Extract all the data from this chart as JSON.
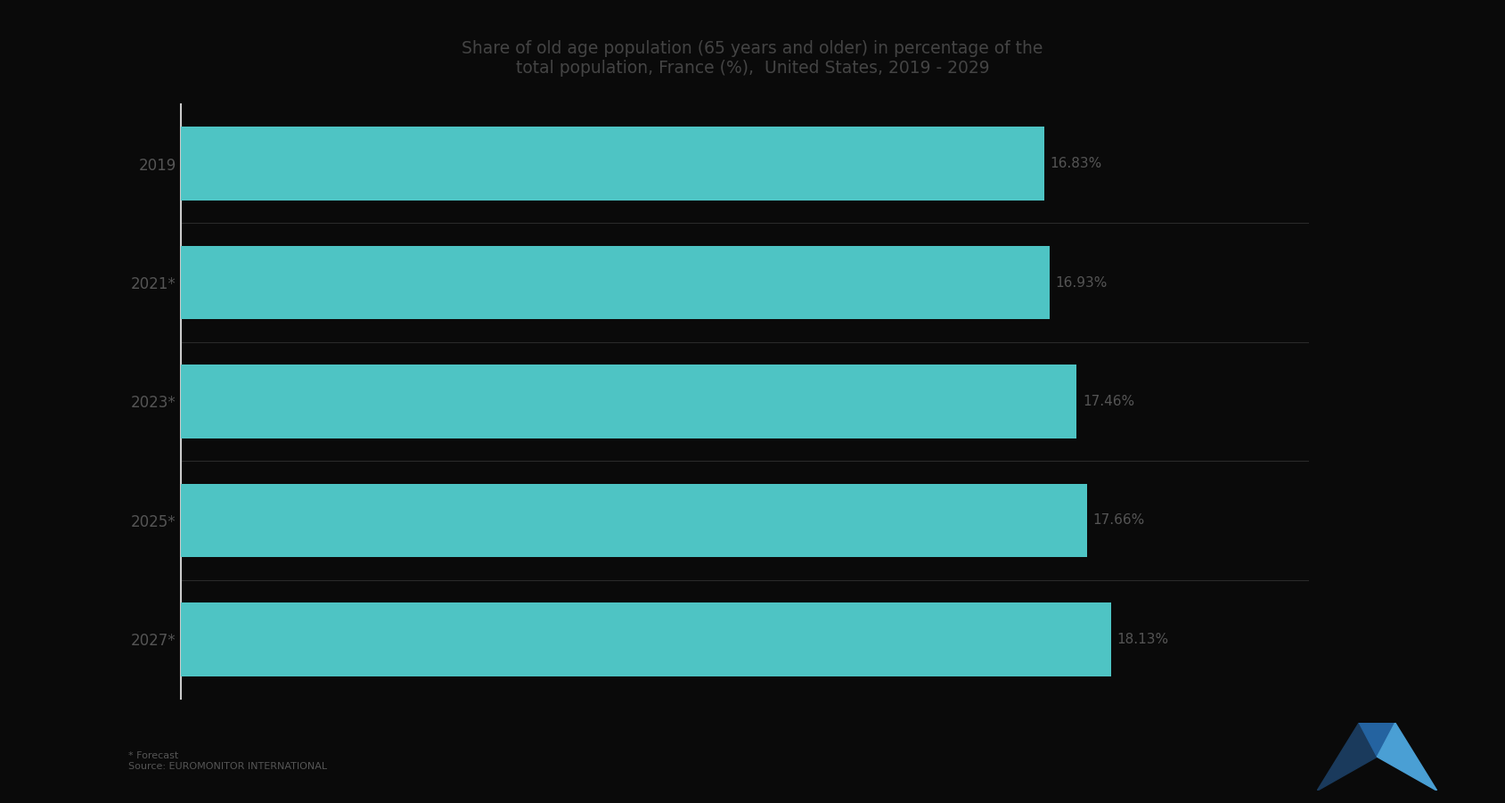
{
  "title_line1": "Share of old age population (65 years and older) in percentage of the",
  "title_line2": "total population, France (%),  United States, 2019 - 2029",
  "categories": [
    "2027*",
    "2025*",
    "2023*",
    "2021*",
    "2019"
  ],
  "values": [
    18.13,
    17.66,
    17.46,
    16.93,
    16.83
  ],
  "bar_color": "#4EC4C4",
  "value_labels": [
    "18.13%",
    "17.66%",
    "17.46%",
    "16.93%",
    "16.83%"
  ],
  "background_color": "#0a0a0a",
  "plot_bg_color": "#0a0a0a",
  "xlim": [
    0,
    22
  ],
  "title_fontsize": 13.5,
  "label_fontsize": 12,
  "value_fontsize": 11,
  "axis_label_color": "#555555",
  "title_color": "#444444",
  "footer_text": "* Forecast\nSource: EUROMONITOR INTERNATIONAL",
  "logo_colors": [
    "#1a3a5c",
    "#2463a0",
    "#4a9fd4"
  ]
}
